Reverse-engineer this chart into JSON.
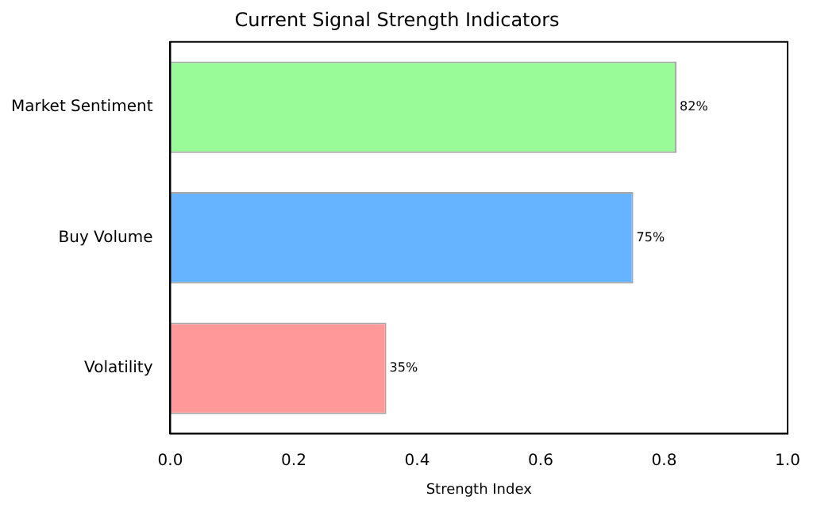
{
  "chart_data": {
    "type": "bar",
    "orientation": "horizontal",
    "title": "Current Signal Strength Indicators",
    "xlabel": "Strength Index",
    "categories": [
      "Market Sentiment",
      "Buy Volume",
      "Volatility"
    ],
    "values": [
      0.82,
      0.75,
      0.35
    ],
    "colors": [
      "#98fb98",
      "#66b3ff",
      "#ff9999"
    ],
    "value_labels": [
      "82%",
      "75%",
      "35%"
    ],
    "xlim": [
      0,
      1
    ],
    "xticks": [
      {
        "value": 0,
        "label": "0.0"
      },
      {
        "value": 0.2,
        "label": "0.2"
      },
      {
        "value": 0.4,
        "label": "0.4"
      },
      {
        "value": 0.6,
        "label": "0.6"
      },
      {
        "value": 0.8,
        "label": "0.8"
      },
      {
        "value": 1,
        "label": "1.0"
      }
    ],
    "grid": false,
    "legend": false
  }
}
